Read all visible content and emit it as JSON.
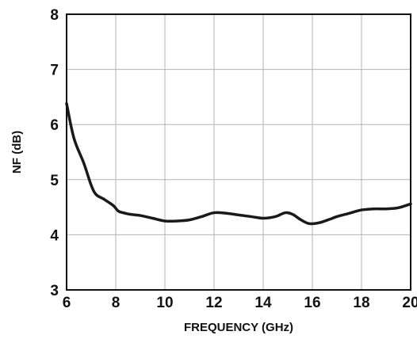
{
  "chart_data": {
    "type": "line",
    "title": "",
    "xlabel": "FREQUENCY (GHz)",
    "ylabel": "NF (dB)",
    "xlim": [
      6,
      20
    ],
    "ylim": [
      3,
      8
    ],
    "x_ticks": [
      6,
      8,
      10,
      12,
      14,
      16,
      18,
      20
    ],
    "y_ticks": [
      3,
      4,
      5,
      6,
      7,
      8
    ],
    "grid": true,
    "line_color": "#1a1a1a",
    "grid_color": "#b3b3b3",
    "series": [
      {
        "x": [
          6.0,
          6.3,
          6.7,
          7.0,
          7.2,
          7.5,
          7.9,
          8.1,
          8.3,
          8.6,
          9.0,
          9.5,
          10.0,
          10.5,
          11.0,
          11.5,
          12.0,
          12.5,
          13.0,
          13.5,
          14.0,
          14.5,
          14.9,
          15.2,
          15.5,
          15.8,
          16.0,
          16.3,
          16.7,
          17.0,
          17.5,
          18.0,
          18.5,
          19.0,
          19.5,
          20.0
        ],
        "y": [
          6.38,
          5.75,
          5.3,
          4.9,
          4.73,
          4.65,
          4.53,
          4.43,
          4.4,
          4.37,
          4.35,
          4.3,
          4.25,
          4.25,
          4.27,
          4.33,
          4.4,
          4.39,
          4.36,
          4.33,
          4.3,
          4.33,
          4.4,
          4.37,
          4.28,
          4.21,
          4.2,
          4.22,
          4.28,
          4.33,
          4.39,
          4.45,
          4.47,
          4.47,
          4.49,
          4.56
        ]
      }
    ]
  }
}
